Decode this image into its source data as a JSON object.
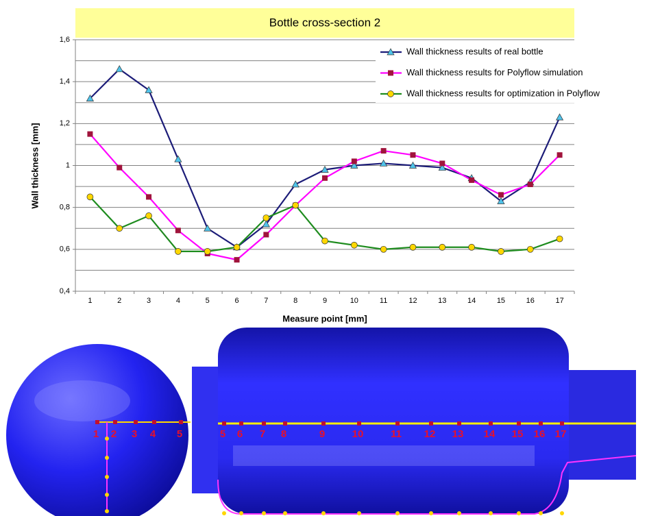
{
  "chart_data": {
    "type": "line",
    "title": "Bottle cross-section  2",
    "x_label": "Measure point [mm]",
    "y_label": "Wall thickness [mm]",
    "categories": [
      "1",
      "2",
      "3",
      "4",
      "5",
      "6",
      "7",
      "8",
      "9",
      "10",
      "11",
      "12",
      "13",
      "14",
      "15",
      "16",
      "17"
    ],
    "series": [
      {
        "name": "Wall thickness results of real bottle",
        "color": "#1c1c78",
        "marker": "triangle",
        "marker_color": "#4fc3ea",
        "values": [
          1.32,
          1.46,
          1.36,
          1.03,
          0.7,
          0.61,
          0.72,
          0.91,
          0.98,
          1.0,
          1.01,
          1.0,
          0.99,
          0.94,
          0.83,
          0.92,
          1.23
        ]
      },
      {
        "name": "Wall thickness results for Polyflow simulation",
        "color": "#ff00ff",
        "marker": "square",
        "marker_color": "#a0143c",
        "values": [
          1.15,
          0.99,
          0.85,
          0.69,
          0.58,
          0.55,
          0.67,
          0.81,
          0.94,
          1.02,
          1.07,
          1.05,
          1.01,
          0.93,
          0.86,
          0.91,
          1.05
        ]
      },
      {
        "name": "Wall thickness results for optimization in Polyflow",
        "color": "#1e8c1e",
        "marker": "circle",
        "marker_color": "#ffd700",
        "values": [
          0.85,
          0.7,
          0.76,
          0.59,
          0.59,
          0.61,
          0.75,
          0.81,
          0.64,
          0.62,
          0.6,
          0.61,
          0.61,
          0.61,
          0.59,
          0.6,
          0.65
        ]
      }
    ],
    "ylim": [
      0.4,
      1.6
    ],
    "yticks": [
      {
        "value": 0.4,
        "label": "0,4"
      },
      {
        "value": 0.6,
        "label": "0,6"
      },
      {
        "value": 0.8,
        "label": "0,8"
      },
      1,
      {
        "value": 1.2,
        "label": "1,2"
      },
      {
        "value": 1.4,
        "label": "1,4"
      },
      {
        "value": 1.6,
        "label": "1,6"
      }
    ],
    "minor_yticks": [
      0.5,
      0.7,
      0.9,
      1.1,
      1.3,
      1.5
    ],
    "grid": true,
    "legend": "top-right"
  },
  "bottle_diagram": {
    "end_view_labels": [
      "1",
      "2",
      "3",
      "4",
      "5"
    ],
    "side_view_labels": [
      "5",
      "6",
      "7",
      "8",
      "9",
      "10",
      "11",
      "12",
      "13",
      "14",
      "15",
      "16",
      "17"
    ]
  }
}
